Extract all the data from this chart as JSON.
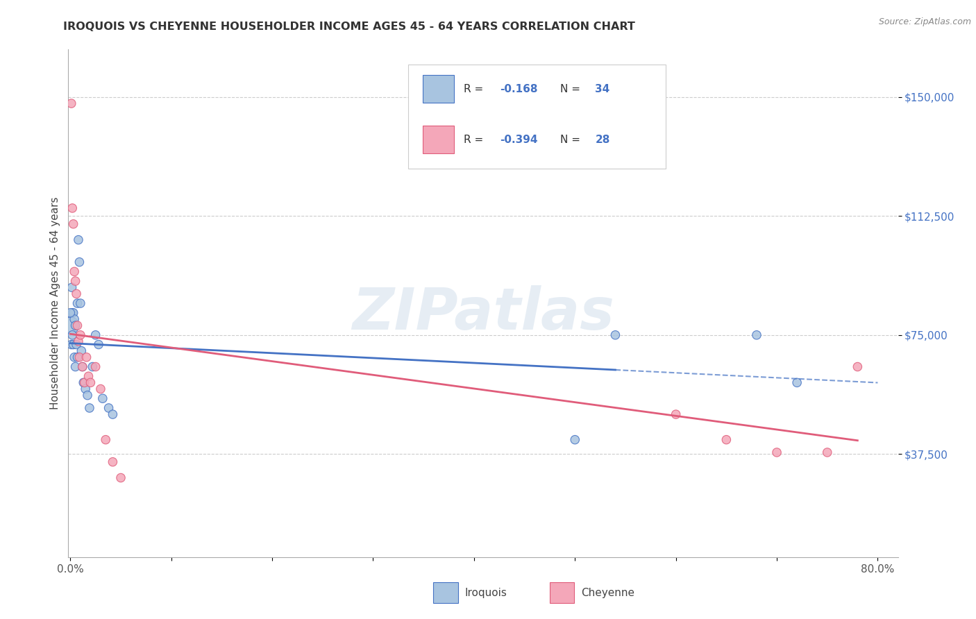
{
  "title": "IROQUOIS VS CHEYENNE HOUSEHOLDER INCOME AGES 45 - 64 YEARS CORRELATION CHART",
  "source": "Source: ZipAtlas.com",
  "ylabel": "Householder Income Ages 45 - 64 years",
  "ytick_labels": [
    "$37,500",
    "$75,000",
    "$112,500",
    "$150,000"
  ],
  "ytick_values": [
    37500,
    75000,
    112500,
    150000
  ],
  "ymin": 5000,
  "ymax": 165000,
  "xmin": -0.002,
  "xmax": 0.82,
  "watermark": "ZIPatlas",
  "iroquois_color": "#a8c4e0",
  "cheyenne_color": "#f4a7b9",
  "iroquois_line_color": "#4472c4",
  "cheyenne_line_color": "#e05c7a",
  "background_color": "#ffffff",
  "iroquois_x": [
    0.0005,
    0.001,
    0.0015,
    0.002,
    0.002,
    0.003,
    0.003,
    0.004,
    0.004,
    0.005,
    0.005,
    0.006,
    0.007,
    0.007,
    0.008,
    0.009,
    0.01,
    0.011,
    0.012,
    0.013,
    0.015,
    0.017,
    0.019,
    0.022,
    0.025,
    0.028,
    0.032,
    0.038,
    0.042,
    0.0,
    0.5,
    0.54,
    0.68,
    0.72
  ],
  "iroquois_y": [
    78000,
    72000,
    90000,
    82000,
    75000,
    82000,
    72000,
    80000,
    68000,
    78000,
    65000,
    72000,
    85000,
    68000,
    105000,
    98000,
    85000,
    70000,
    65000,
    60000,
    58000,
    56000,
    52000,
    65000,
    75000,
    72000,
    55000,
    52000,
    50000,
    82000,
    42000,
    75000,
    75000,
    60000
  ],
  "iroquois_sizes": [
    300,
    80,
    80,
    80,
    80,
    80,
    80,
    80,
    80,
    80,
    80,
    80,
    80,
    80,
    80,
    80,
    80,
    80,
    80,
    80,
    80,
    80,
    80,
    80,
    80,
    80,
    80,
    80,
    80,
    80,
    80,
    80,
    80,
    80
  ],
  "cheyenne_x": [
    0.001,
    0.002,
    0.003,
    0.004,
    0.005,
    0.006,
    0.007,
    0.008,
    0.009,
    0.01,
    0.012,
    0.014,
    0.016,
    0.018,
    0.02,
    0.025,
    0.03,
    0.035,
    0.042,
    0.05,
    0.6,
    0.65,
    0.7,
    0.75,
    0.78
  ],
  "cheyenne_y": [
    148000,
    115000,
    110000,
    95000,
    92000,
    88000,
    78000,
    73000,
    68000,
    75000,
    65000,
    60000,
    68000,
    62000,
    60000,
    65000,
    58000,
    42000,
    35000,
    30000,
    50000,
    42000,
    38000,
    38000,
    65000
  ],
  "cheyenne_sizes": [
    80,
    80,
    80,
    80,
    80,
    80,
    80,
    80,
    80,
    80,
    80,
    80,
    80,
    80,
    80,
    80,
    80,
    80,
    80,
    80,
    80,
    80,
    80,
    80,
    80
  ]
}
